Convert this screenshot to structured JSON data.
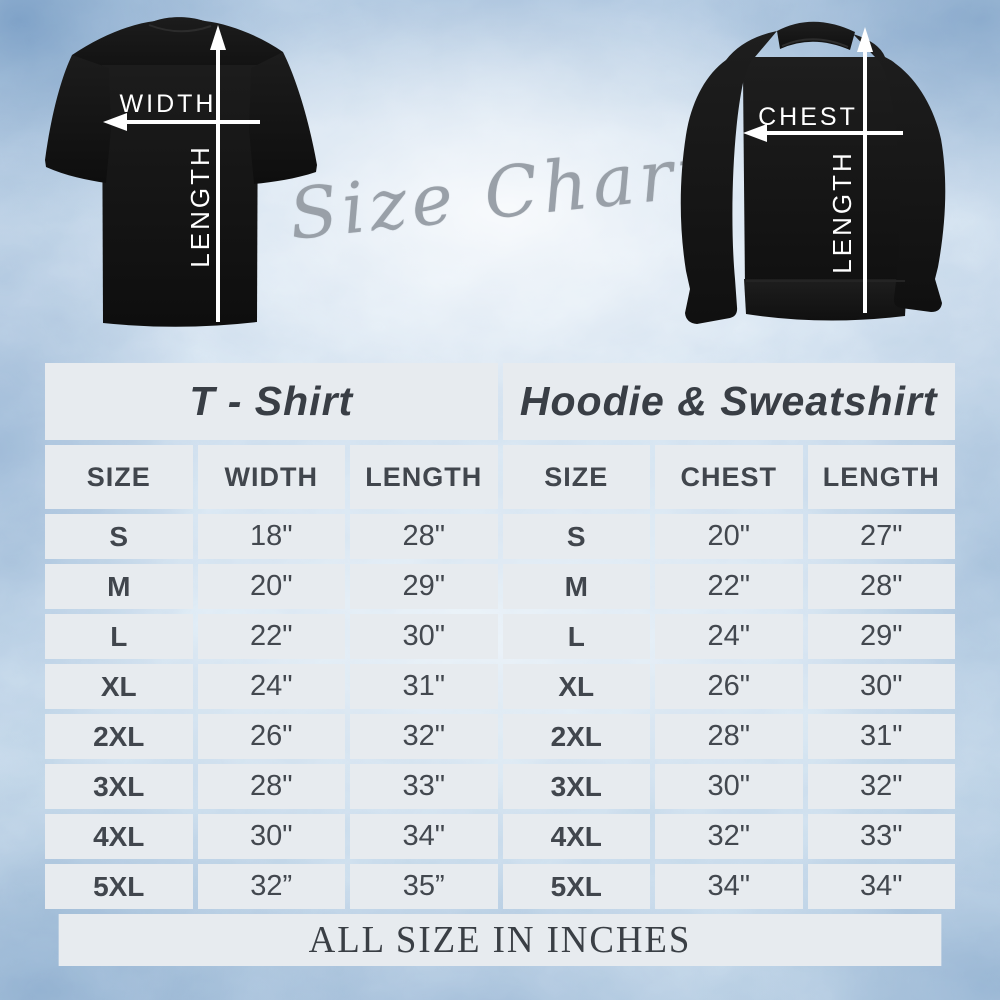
{
  "heading": {
    "script_text": "Size Chart"
  },
  "diagrams": {
    "tshirt": {
      "width_label": "WIDTH",
      "length_label": "LENGTH"
    },
    "hoodie": {
      "chest_label": "CHEST",
      "length_label": "LENGTH"
    }
  },
  "chart_data": [
    {
      "type": "table",
      "title": "T - Shirt",
      "columns": [
        "SIZE",
        "WIDTH",
        "LENGTH"
      ],
      "rows": [
        [
          "S",
          "18\"",
          "28\""
        ],
        [
          "M",
          "20\"",
          "29\""
        ],
        [
          "L",
          "22\"",
          "30\""
        ],
        [
          "XL",
          "24\"",
          "31\""
        ],
        [
          "2XL",
          "26\"",
          "32\""
        ],
        [
          "3XL",
          "28\"",
          "33\""
        ],
        [
          "4XL",
          "30\"",
          "34\""
        ],
        [
          "5XL",
          "32”",
          "35”"
        ]
      ]
    },
    {
      "type": "table",
      "title": "Hoodie & Sweatshirt",
      "columns": [
        "SIZE",
        "CHEST",
        "LENGTH"
      ],
      "rows": [
        [
          "S",
          "20\"",
          "27\""
        ],
        [
          "M",
          "22\"",
          "28\""
        ],
        [
          "L",
          "24\"",
          "29\""
        ],
        [
          "XL",
          "26\"",
          "30\""
        ],
        [
          "2XL",
          "28\"",
          "31\""
        ],
        [
          "3XL",
          "30\"",
          "32\""
        ],
        [
          "4XL",
          "32\"",
          "33\""
        ],
        [
          "5XL",
          "34\"",
          "34\""
        ]
      ]
    }
  ],
  "footer": {
    "note": "ALL SIZE IN INCHES"
  },
  "colors": {
    "garment_black": "#151515",
    "cell_background": "#e7ebef",
    "table_text": "#3e434a",
    "script_gray": "#99a0a8",
    "arrow_white": "#ffffff",
    "background_blue": "#cfe0ee"
  }
}
